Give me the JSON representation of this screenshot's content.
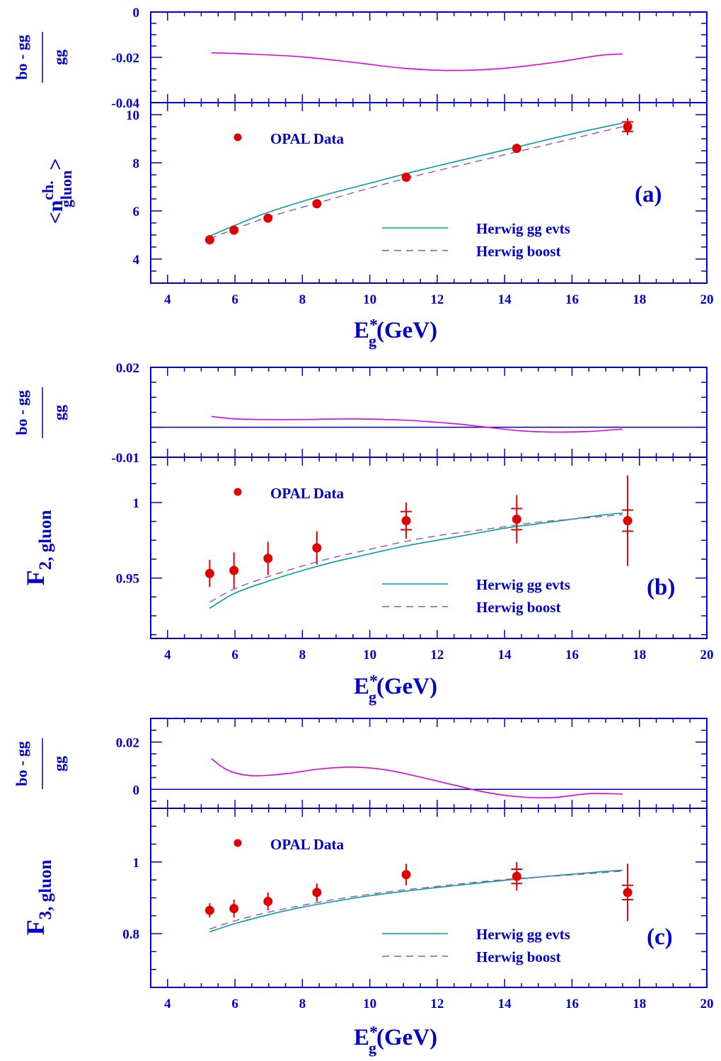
{
  "colors": {
    "axis": "#0000c8",
    "gg_curve": "#00a0a0",
    "boost_curve": "#a050a0",
    "ratio_curve": "#e000e0",
    "data": "#e00000"
  },
  "chart_data": [
    {
      "id": "a",
      "type": "line",
      "tag": "(a)",
      "xlabel_main": "E",
      "xlabel_sup": "*",
      "xlabel_sub": "g",
      "xlabel_unit": "(GeV)",
      "xlim": [
        3.5,
        20
      ],
      "x_ticks": [
        4,
        6,
        8,
        10,
        12,
        14,
        16,
        18,
        20
      ],
      "ratio_panel": {
        "ylabel_num": "bo - gg",
        "ylabel_den": "gg",
        "ylim": [
          -0.04,
          0
        ],
        "y_ticks": [
          0,
          -0.02,
          -0.04
        ],
        "y_tick_labels": [
          "0",
          "-0.02",
          "-0.04"
        ],
        "zero_line": false,
        "curve": {
          "x": [
            5.3,
            6.5,
            8,
            9.5,
            11,
            12.5,
            14,
            15.5,
            16.8,
            17.5
          ],
          "y": [
            -0.018,
            -0.0186,
            -0.0198,
            -0.0222,
            -0.0248,
            -0.0258,
            -0.0248,
            -0.0222,
            -0.0192,
            -0.0185
          ]
        }
      },
      "main_panel": {
        "ylabel": "<n ch. gluon >",
        "ylabel_parts": {
          "pre": "<n",
          "sup": "ch.",
          "sub": "gluon",
          "post": ">"
        },
        "ylim": [
          3,
          10.5
        ],
        "y_ticks": [
          4,
          6,
          8,
          10
        ],
        "y_tick_labels": [
          "4",
          "6",
          "8",
          "10"
        ],
        "data": {
          "name": "OPAL Data",
          "x": [
            5.25,
            5.97,
            6.98,
            8.43,
            11.08,
            14.36,
            17.65
          ],
          "y": [
            4.8,
            5.2,
            5.7,
            6.3,
            7.4,
            8.6,
            9.5
          ],
          "err": [
            0.08,
            0.08,
            0.08,
            0.1,
            0.1,
            0.12,
            0.35
          ],
          "err_inner": [
            0,
            0,
            0,
            0,
            0,
            0,
            0.2
          ]
        },
        "series": [
          {
            "name": "Herwig gg evts",
            "style": "solid",
            "x": [
              5.25,
              6,
              7,
              8.5,
              10,
              11.5,
              13,
              14.5,
              16,
              17.5
            ],
            "y": [
              4.95,
              5.4,
              5.95,
              6.6,
              7.15,
              7.7,
              8.2,
              8.7,
              9.2,
              9.65
            ]
          },
          {
            "name": "Herwig boost",
            "style": "dashed",
            "x": [
              5.25,
              6,
              7,
              8.5,
              10,
              11.5,
              13,
              14.5,
              16,
              17.5
            ],
            "y": [
              4.85,
              5.25,
              5.75,
              6.35,
              6.95,
              7.5,
              8.0,
              8.5,
              9.0,
              9.5
            ]
          }
        ]
      }
    },
    {
      "id": "b",
      "type": "line",
      "tag": "(b)",
      "xlabel_main": "E",
      "xlabel_sup": "*",
      "xlabel_sub": "g",
      "xlabel_unit": "(GeV)",
      "xlim": [
        3.5,
        20
      ],
      "x_ticks": [
        4,
        6,
        8,
        10,
        12,
        14,
        16,
        18,
        20
      ],
      "ratio_panel": {
        "ylabel_num": "bo - gg",
        "ylabel_den": "gg",
        "ylim": [
          -0.01,
          0.02
        ],
        "y_ticks": [
          0.02,
          -0.01
        ],
        "y_tick_labels": [
          "0.02",
          "-0.01"
        ],
        "zero_line": true,
        "curve": {
          "x": [
            5.3,
            6,
            7,
            8,
            9.5,
            11,
            12.5,
            13.5,
            14.5,
            15.5,
            16.5,
            17.5
          ],
          "y": [
            0.0036,
            0.0028,
            0.0026,
            0.0026,
            0.0028,
            0.0024,
            0.0012,
            0.0,
            -0.0012,
            -0.0016,
            -0.0014,
            -0.0006
          ]
        }
      },
      "main_panel": {
        "ylabel": "F 2, gluon",
        "ylabel_parts": {
          "pre": "F",
          "sup": "",
          "sub": "2, gluon",
          "post": ""
        },
        "ylim": [
          0.91,
          1.03
        ],
        "y_ticks": [
          0.95,
          1.0
        ],
        "y_tick_labels": [
          "0.95",
          "1"
        ],
        "data": {
          "name": "OPAL Data",
          "x": [
            5.25,
            5.97,
            6.98,
            8.43,
            11.08,
            14.36,
            17.65
          ],
          "y": [
            0.953,
            0.955,
            0.963,
            0.97,
            0.988,
            0.989,
            0.988
          ],
          "err": [
            0.009,
            0.012,
            0.011,
            0.011,
            0.012,
            0.016,
            0.03
          ],
          "err_inner": [
            0,
            0,
            0,
            0,
            0.006,
            0.007,
            0.007
          ]
        },
        "series": [
          {
            "name": "Herwig gg evts",
            "style": "solid",
            "x": [
              5.25,
              6,
              7,
              8,
              9,
              10,
              11,
              12,
              13,
              14,
              15,
              16,
              17,
              17.5
            ],
            "y": [
              0.93,
              0.94,
              0.948,
              0.955,
              0.961,
              0.966,
              0.971,
              0.975,
              0.979,
              0.983,
              0.986,
              0.989,
              0.992,
              0.993
            ]
          },
          {
            "name": "Herwig boost",
            "style": "dashed",
            "x": [
              5.25,
              6,
              7,
              8,
              9,
              10,
              11,
              12,
              13,
              14,
              15,
              16,
              17,
              17.5
            ],
            "y": [
              0.934,
              0.943,
              0.951,
              0.958,
              0.964,
              0.969,
              0.974,
              0.978,
              0.981,
              0.984,
              0.987,
              0.989,
              0.991,
              0.992
            ]
          }
        ]
      }
    },
    {
      "id": "c",
      "type": "line",
      "tag": "(c)",
      "xlabel_main": "E",
      "xlabel_sup": "*",
      "xlabel_sub": "g",
      "xlabel_unit": "(GeV)",
      "xlim": [
        3.5,
        20
      ],
      "x_ticks": [
        4,
        6,
        8,
        10,
        12,
        14,
        16,
        18,
        20
      ],
      "ratio_panel": {
        "ylabel_num": "bo - gg",
        "ylabel_den": "gg",
        "ylim": [
          -0.008,
          0.03
        ],
        "y_ticks": [
          0.02,
          0
        ],
        "y_tick_labels": [
          "0.02",
          "0"
        ],
        "zero_line": true,
        "curve": {
          "x": [
            5.3,
            5.8,
            6.5,
            7.5,
            8.5,
            9.5,
            10.5,
            11.5,
            12.5,
            13.5,
            14.5,
            15.5,
            16.5,
            17.5
          ],
          "y": [
            0.013,
            0.008,
            0.0058,
            0.0066,
            0.0086,
            0.0094,
            0.0082,
            0.0052,
            0.0018,
            -0.0014,
            -0.0032,
            -0.0034,
            -0.0018,
            -0.002
          ]
        }
      },
      "main_panel": {
        "ylabel": "F 3, gluon",
        "ylabel_parts": {
          "pre": "F",
          "sup": "",
          "sub": "3, gluon",
          "post": ""
        },
        "ylim": [
          0.65,
          1.15
        ],
        "y_ticks": [
          0.8,
          1.0
        ],
        "y_tick_labels": [
          "0.8",
          "1"
        ],
        "data": {
          "name": "OPAL Data",
          "x": [
            5.25,
            5.97,
            6.98,
            8.43,
            11.08,
            14.36,
            17.65
          ],
          "y": [
            0.865,
            0.87,
            0.89,
            0.915,
            0.965,
            0.96,
            0.915
          ],
          "err": [
            0.02,
            0.025,
            0.025,
            0.025,
            0.03,
            0.04,
            0.08
          ],
          "err_inner": [
            0,
            0,
            0,
            0,
            0,
            0.02,
            0.02
          ]
        },
        "series": [
          {
            "name": "Herwig gg evts",
            "style": "solid",
            "x": [
              5.25,
              6,
              7,
              8,
              9,
              10,
              11,
              12,
              13,
              14,
              15,
              16,
              17,
              17.5
            ],
            "y": [
              0.805,
              0.828,
              0.853,
              0.874,
              0.891,
              0.906,
              0.918,
              0.929,
              0.939,
              0.949,
              0.958,
              0.966,
              0.974,
              0.977
            ]
          },
          {
            "name": "Herwig boost",
            "style": "dashed",
            "x": [
              5.25,
              6,
              7,
              8,
              9,
              10,
              11,
              12,
              13,
              14,
              15,
              16,
              17,
              17.5
            ],
            "y": [
              0.813,
              0.836,
              0.86,
              0.879,
              0.896,
              0.91,
              0.922,
              0.932,
              0.942,
              0.951,
              0.958,
              0.964,
              0.971,
              0.975
            ]
          }
        ]
      }
    }
  ]
}
